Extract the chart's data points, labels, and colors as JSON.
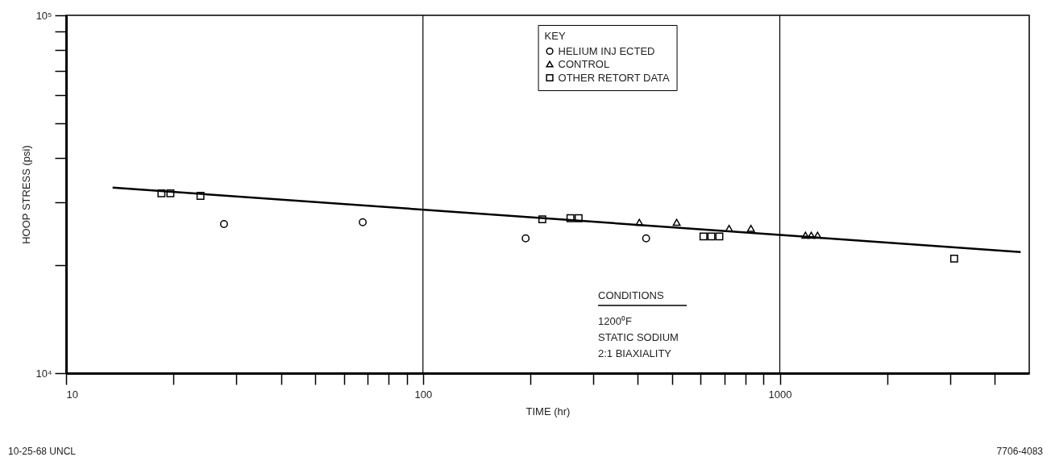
{
  "chart_data": {
    "type": "scatter",
    "xlabel": "TIME (hr)",
    "ylabel": "HOOP STRESS (psi)",
    "legend_title": "KEY",
    "log": "xy",
    "xlim": [
      10,
      5000
    ],
    "ylim": [
      10000,
      100000
    ],
    "xticks": [
      10,
      {
        "value": 20,
        "label": null
      },
      {
        "value": 30,
        "label": null
      },
      {
        "value": 40,
        "label": null
      },
      {
        "value": 50,
        "label": null
      },
      {
        "value": 60,
        "label": null
      },
      {
        "value": 70,
        "label": null
      },
      {
        "value": 80,
        "label": null
      },
      {
        "value": 90,
        "label": null
      },
      100,
      {
        "value": 200,
        "label": null
      },
      {
        "value": 300,
        "label": null
      },
      {
        "value": 400,
        "label": null
      },
      {
        "value": 500,
        "label": null
      },
      {
        "value": 600,
        "label": null
      },
      {
        "value": 700,
        "label": null
      },
      {
        "value": 800,
        "label": null
      },
      {
        "value": 900,
        "label": null
      },
      1000,
      {
        "value": 2000,
        "label": null
      },
      {
        "value": 3000,
        "label": null
      },
      {
        "value": 4000,
        "label": null
      }
    ],
    "yticks": [
      {
        "value": 10000,
        "label": "10⁴"
      },
      {
        "value": 20000,
        "label": null
      },
      {
        "value": 30000,
        "label": null
      },
      {
        "value": 40000,
        "label": null
      },
      {
        "value": 50000,
        "label": null
      },
      {
        "value": 60000,
        "label": null
      },
      {
        "value": 70000,
        "label": null
      },
      {
        "value": 80000,
        "label": null
      },
      {
        "value": 90000,
        "label": null
      },
      {
        "value": 100000,
        "label": "10⁵"
      }
    ],
    "grid": "x",
    "legend": "top",
    "series": [
      {
        "name": "HELIUM INJ ECTED",
        "marker": "circle",
        "color": "#000000",
        "x": [
          27.7,
          67.8,
          194,
          422
        ],
        "values": [
          26100,
          26400,
          23800,
          23800
        ]
      },
      {
        "name": "CONTROL",
        "marker": "triangle",
        "color": "#000000",
        "x": [
          404,
          514,
          721,
          830,
          1180,
          1225,
          1276
        ],
        "values": [
          26400,
          26400,
          25400,
          25400,
          24300,
          24300,
          24300
        ]
      },
      {
        "name": "OTHER RETORT DATA",
        "marker": "square",
        "color": "#000000",
        "x": [
          18.5,
          19.6,
          23.8,
          216,
          259,
          273,
          611,
          643,
          677,
          3080
        ],
        "values": [
          31800,
          31800,
          31300,
          26900,
          27100,
          27100,
          24100,
          24100,
          24100,
          20900
        ]
      },
      {
        "type": "line",
        "line_style": "solid",
        "color": "#000000",
        "x": [
          13.5,
          4730
        ],
        "values": [
          33000,
          21800
        ]
      }
    ],
    "annotations": [
      "CONDITIONS",
      "1200⁰F",
      "STATIC SODIUM",
      "2:1 BIAXIALITY",
      "10-25-68 UNCL",
      "7706-4083"
    ]
  }
}
